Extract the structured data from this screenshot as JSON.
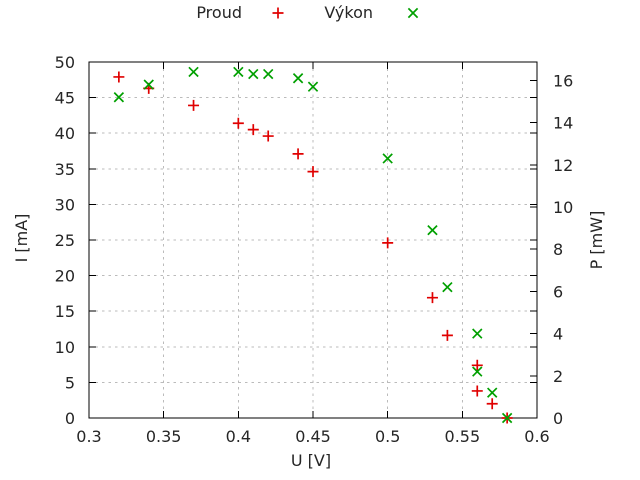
{
  "chart_data": {
    "type": "scatter",
    "title": "",
    "xlabel": "U [V]",
    "ylabel": "I [mA]",
    "y2label": "P [mW]",
    "xlim": [
      0.3,
      0.6
    ],
    "ylim": [
      0,
      50
    ],
    "y2lim": [
      0,
      16.87
    ],
    "xticks": {
      "values": [
        0.3,
        0.35,
        0.4,
        0.45,
        0.5,
        0.55,
        0.6
      ],
      "labels": [
        "0.3",
        "0.35",
        "0.4",
        "0.45",
        "0.5",
        "0.55",
        "0.6"
      ]
    },
    "yticks": {
      "values": [
        0,
        5,
        10,
        15,
        20,
        25,
        30,
        35,
        40,
        45,
        50
      ],
      "labels": [
        "0",
        "5",
        "10",
        "15",
        "20",
        "25",
        "30",
        "35",
        "40",
        "45",
        "50"
      ]
    },
    "y2ticks": {
      "values": [
        0,
        2,
        4,
        6,
        8,
        10,
        12,
        14,
        16
      ],
      "labels": [
        "0",
        "2",
        "4",
        "6",
        "8",
        "10",
        "12",
        "14",
        "16"
      ]
    },
    "grid": true,
    "legend_position": "top-center-outside",
    "colors": {
      "grid": "#bbbbbb",
      "border": "#000000",
      "text": "#262626"
    },
    "series": [
      {
        "name": "Proud",
        "axis": "y1",
        "marker": "plus",
        "color": "#e00000",
        "points": [
          [
            0.32,
            47.9
          ],
          [
            0.34,
            46.3
          ],
          [
            0.37,
            43.9
          ],
          [
            0.4,
            41.4
          ],
          [
            0.41,
            40.5
          ],
          [
            0.42,
            39.6
          ],
          [
            0.44,
            37.1
          ],
          [
            0.45,
            34.6
          ],
          [
            0.5,
            24.6
          ],
          [
            0.53,
            16.9
          ],
          [
            0.54,
            11.6
          ],
          [
            0.56,
            7.4
          ],
          [
            0.56,
            3.8
          ],
          [
            0.57,
            2.0
          ],
          [
            0.58,
            0.0
          ]
        ]
      },
      {
        "name": "Výkon",
        "axis": "y2",
        "marker": "cross",
        "color": "#00a000",
        "points": [
          [
            0.32,
            15.2
          ],
          [
            0.34,
            15.8
          ],
          [
            0.37,
            16.4
          ],
          [
            0.4,
            16.4
          ],
          [
            0.41,
            16.3
          ],
          [
            0.42,
            16.3
          ],
          [
            0.44,
            16.1
          ],
          [
            0.45,
            15.7
          ],
          [
            0.5,
            12.3
          ],
          [
            0.53,
            8.9
          ],
          [
            0.54,
            6.2
          ],
          [
            0.56,
            4.0
          ],
          [
            0.56,
            2.2
          ],
          [
            0.57,
            1.2
          ],
          [
            0.58,
            0.0
          ]
        ]
      }
    ]
  }
}
